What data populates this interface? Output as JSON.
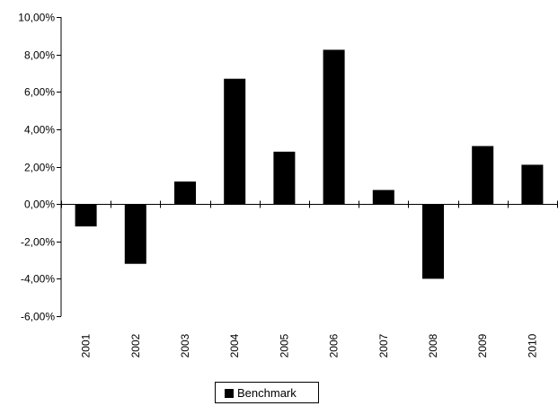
{
  "chart_data": {
    "type": "bar",
    "title": "",
    "xlabel": "",
    "ylabel": "",
    "categories": [
      "2001",
      "2002",
      "2003",
      "2004",
      "2005",
      "2006",
      "2007",
      "2008",
      "2009",
      "2010"
    ],
    "series": [
      {
        "name": "Benchmark",
        "color": "#000000",
        "values": [
          -1.2,
          -3.2,
          1.2,
          6.7,
          2.8,
          8.25,
          0.75,
          -4.0,
          3.1,
          2.1
        ]
      }
    ],
    "ylim": [
      -6,
      10
    ],
    "yticks": [
      -6,
      -4,
      -2,
      0,
      2,
      4,
      6,
      8,
      10
    ],
    "ytick_labels": [
      "-6,00%",
      "-4,00%",
      "-2,00%",
      "0,00%",
      "2,00%",
      "4,00%",
      "6,00%",
      "8,00%",
      "10,00%"
    ],
    "grid": false,
    "legend_position": "bottom"
  },
  "legend": {
    "label": "Benchmark"
  }
}
